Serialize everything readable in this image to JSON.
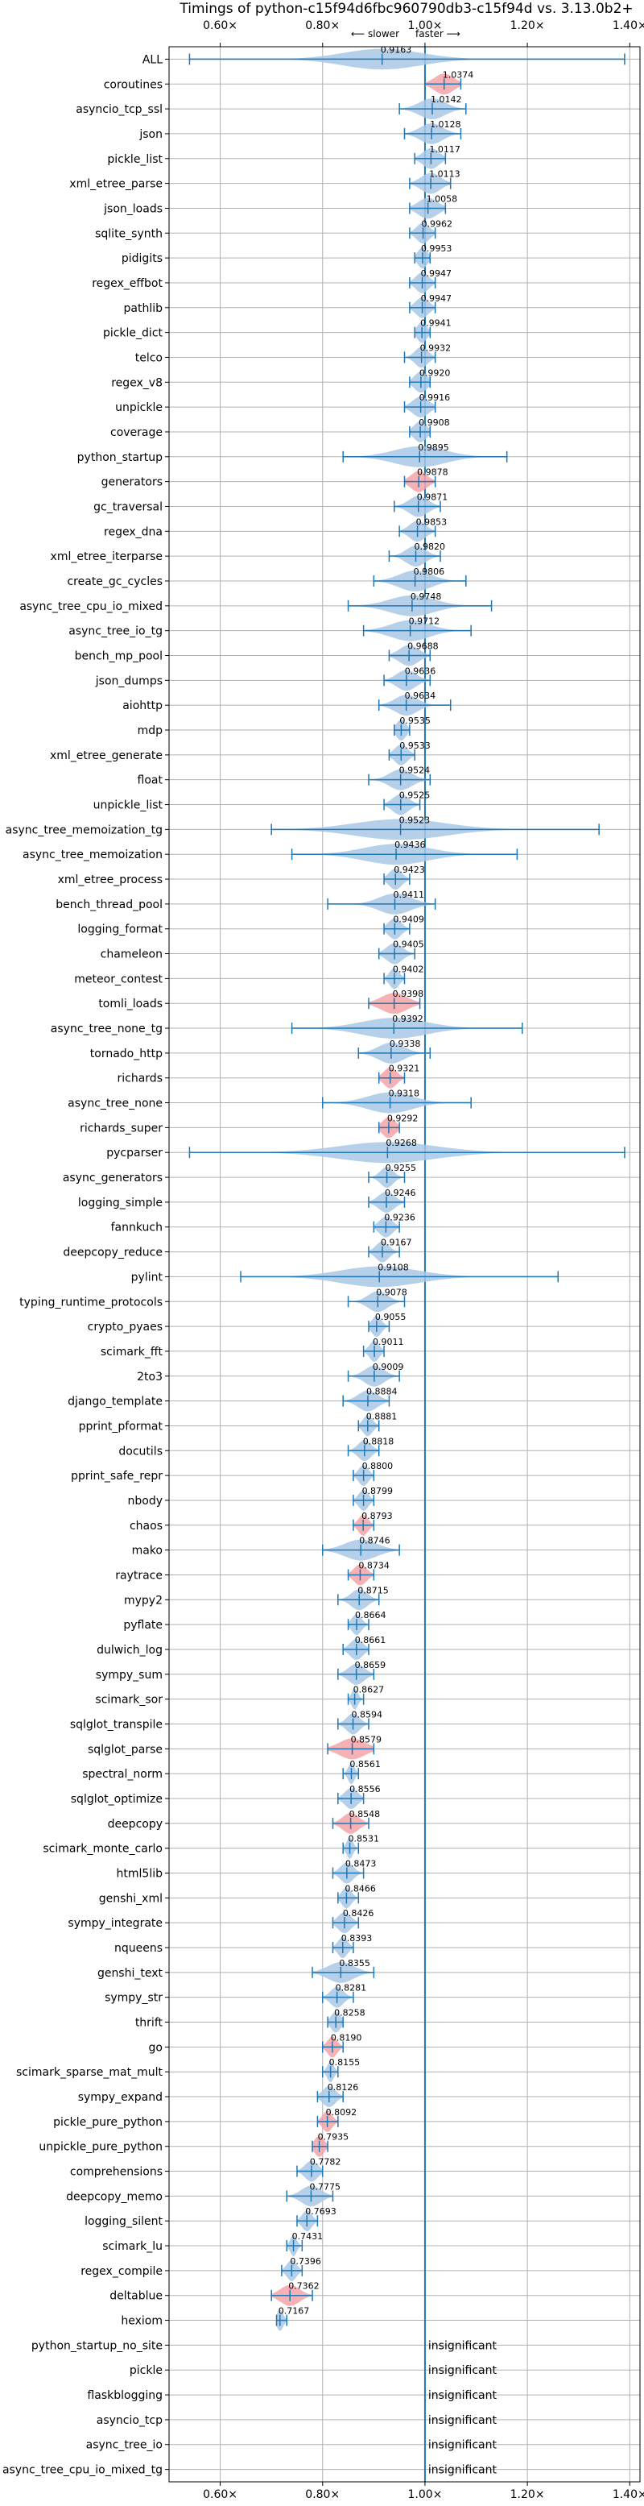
{
  "chart_data": {
    "type": "violin",
    "title": "Timings of python-c15f94d6fbc960790db3-c15f94d vs. 3.13.0b2+",
    "direction_note_left": "⟵ slower",
    "direction_note_right": "faster ⟶",
    "xlim": [
      0.5,
      1.42
    ],
    "reference_line": 1.0,
    "x_ticks": [
      0.6,
      0.8,
      1.0,
      1.2,
      1.4
    ],
    "x_tick_labels": [
      "0.60×",
      "0.80×",
      "1.00×",
      "1.20×",
      "1.40×"
    ],
    "insignificant_label": "insignificant",
    "colors": {
      "violin": "#1f77b4",
      "violin_fill": "#a9c8e6",
      "highlight_fill": "#f4a3a8",
      "grid": "#b0b0b0",
      "ref_line": "#1f77b4"
    },
    "benchmarks": [
      {
        "name": "ALL",
        "value": 0.9163,
        "label": "0.9163",
        "lo": 0.54,
        "hi": 1.39,
        "spread": 0.12,
        "hl": false
      },
      {
        "name": "coroutines",
        "value": 1.0374,
        "label": "1.0374",
        "lo": 1.0,
        "hi": 1.07,
        "spread": 0.03,
        "hl": true
      },
      {
        "name": "asyncio_tcp_ssl",
        "value": 1.0142,
        "label": "1.0142",
        "lo": 0.95,
        "hi": 1.08,
        "spread": 0.04,
        "hl": false
      },
      {
        "name": "json",
        "value": 1.0128,
        "label": "1.0128",
        "lo": 0.96,
        "hi": 1.07,
        "spread": 0.035,
        "hl": false
      },
      {
        "name": "pickle_list",
        "value": 1.0117,
        "label": "1.0117",
        "lo": 0.98,
        "hi": 1.04,
        "spread": 0.025,
        "hl": false
      },
      {
        "name": "xml_etree_parse",
        "value": 1.0113,
        "label": "1.0113",
        "lo": 0.97,
        "hi": 1.05,
        "spread": 0.03,
        "hl": false
      },
      {
        "name": "json_loads",
        "value": 1.0058,
        "label": "1.0058",
        "lo": 0.97,
        "hi": 1.04,
        "spread": 0.03,
        "hl": false
      },
      {
        "name": "sqlite_synth",
        "value": 0.9962,
        "label": "0.9962",
        "lo": 0.97,
        "hi": 1.02,
        "spread": 0.02,
        "hl": false
      },
      {
        "name": "pidigits",
        "value": 0.9953,
        "label": "0.9953",
        "lo": 0.98,
        "hi": 1.01,
        "spread": 0.015,
        "hl": false
      },
      {
        "name": "regex_effbot",
        "value": 0.9947,
        "label": "0.9947",
        "lo": 0.97,
        "hi": 1.02,
        "spread": 0.02,
        "hl": false
      },
      {
        "name": "pathlib",
        "value": 0.9947,
        "label": "0.9947",
        "lo": 0.97,
        "hi": 1.02,
        "spread": 0.02,
        "hl": false
      },
      {
        "name": "pickle_dict",
        "value": 0.9941,
        "label": "0.9941",
        "lo": 0.98,
        "hi": 1.01,
        "spread": 0.015,
        "hl": false
      },
      {
        "name": "telco",
        "value": 0.9932,
        "label": "0.9932",
        "lo": 0.96,
        "hi": 1.02,
        "spread": 0.02,
        "hl": false
      },
      {
        "name": "regex_v8",
        "value": 0.992,
        "label": "0.9920",
        "lo": 0.97,
        "hi": 1.01,
        "spread": 0.02,
        "hl": false
      },
      {
        "name": "unpickle",
        "value": 0.9916,
        "label": "0.9916",
        "lo": 0.96,
        "hi": 1.02,
        "spread": 0.025,
        "hl": false
      },
      {
        "name": "coverage",
        "value": 0.9908,
        "label": "0.9908",
        "lo": 0.97,
        "hi": 1.01,
        "spread": 0.02,
        "hl": false
      },
      {
        "name": "python_startup",
        "value": 0.9895,
        "label": "0.9895",
        "lo": 0.84,
        "hi": 1.16,
        "spread": 0.08,
        "hl": false
      },
      {
        "name": "generators",
        "value": 0.9878,
        "label": "0.9878",
        "lo": 0.96,
        "hi": 1.02,
        "spread": 0.025,
        "hl": true
      },
      {
        "name": "gc_traversal",
        "value": 0.9871,
        "label": "0.9871",
        "lo": 0.94,
        "hi": 1.03,
        "spread": 0.03,
        "hl": false
      },
      {
        "name": "regex_dna",
        "value": 0.9853,
        "label": "0.9853",
        "lo": 0.95,
        "hi": 1.02,
        "spread": 0.025,
        "hl": false
      },
      {
        "name": "xml_etree_iterparse",
        "value": 0.982,
        "label": "0.9820",
        "lo": 0.93,
        "hi": 1.03,
        "spread": 0.03,
        "hl": false
      },
      {
        "name": "create_gc_cycles",
        "value": 0.9806,
        "label": "0.9806",
        "lo": 0.9,
        "hi": 1.08,
        "spread": 0.05,
        "hl": false
      },
      {
        "name": "async_tree_cpu_io_mixed",
        "value": 0.9748,
        "label": "0.9748",
        "lo": 0.85,
        "hi": 1.13,
        "spread": 0.07,
        "hl": false
      },
      {
        "name": "async_tree_io_tg",
        "value": 0.9712,
        "label": "0.9712",
        "lo": 0.88,
        "hi": 1.09,
        "spread": 0.06,
        "hl": false
      },
      {
        "name": "bench_mp_pool",
        "value": 0.9688,
        "label": "0.9688",
        "lo": 0.93,
        "hi": 1.01,
        "spread": 0.03,
        "hl": false
      },
      {
        "name": "json_dumps",
        "value": 0.9636,
        "label": "0.9636",
        "lo": 0.92,
        "hi": 1.01,
        "spread": 0.03,
        "hl": false
      },
      {
        "name": "aiohttp",
        "value": 0.9634,
        "label": "0.9634",
        "lo": 0.91,
        "hi": 1.05,
        "spread": 0.035,
        "hl": false
      },
      {
        "name": "mdp",
        "value": 0.9535,
        "label": "0.9535",
        "lo": 0.94,
        "hi": 0.97,
        "spread": 0.015,
        "hl": false
      },
      {
        "name": "xml_etree_generate",
        "value": 0.9533,
        "label": "0.9533",
        "lo": 0.93,
        "hi": 0.98,
        "spread": 0.02,
        "hl": false
      },
      {
        "name": "float",
        "value": 0.9524,
        "label": "0.9524",
        "lo": 0.89,
        "hi": 1.01,
        "spread": 0.035,
        "hl": false
      },
      {
        "name": "unpickle_list",
        "value": 0.9525,
        "label": "0.9525",
        "lo": 0.92,
        "hi": 0.99,
        "spread": 0.025,
        "hl": false
      },
      {
        "name": "async_tree_memoization_tg",
        "value": 0.9523,
        "label": "0.9523",
        "lo": 0.7,
        "hi": 1.34,
        "spread": 0.14,
        "hl": false
      },
      {
        "name": "async_tree_memoization",
        "value": 0.9436,
        "label": "0.9436",
        "lo": 0.74,
        "hi": 1.18,
        "spread": 0.1,
        "hl": false
      },
      {
        "name": "xml_etree_process",
        "value": 0.9423,
        "label": "0.9423",
        "lo": 0.92,
        "hi": 0.97,
        "spread": 0.02,
        "hl": false
      },
      {
        "name": "bench_thread_pool",
        "value": 0.9411,
        "label": "0.9411",
        "lo": 0.81,
        "hi": 1.02,
        "spread": 0.05,
        "hl": false
      },
      {
        "name": "logging_format",
        "value": 0.9409,
        "label": "0.9409",
        "lo": 0.92,
        "hi": 0.97,
        "spread": 0.02,
        "hl": false
      },
      {
        "name": "chameleon",
        "value": 0.9405,
        "label": "0.9405",
        "lo": 0.91,
        "hi": 0.98,
        "spread": 0.025,
        "hl": false
      },
      {
        "name": "meteor_contest",
        "value": 0.9402,
        "label": "0.9402",
        "lo": 0.92,
        "hi": 0.96,
        "spread": 0.015,
        "hl": false
      },
      {
        "name": "tomli_loads",
        "value": 0.9398,
        "label": "0.9398",
        "lo": 0.89,
        "hi": 0.99,
        "spread": 0.04,
        "hl": true
      },
      {
        "name": "async_tree_none_tg",
        "value": 0.9392,
        "label": "0.9392",
        "lo": 0.74,
        "hi": 1.19,
        "spread": 0.1,
        "hl": false
      },
      {
        "name": "tornado_http",
        "value": 0.9338,
        "label": "0.9338",
        "lo": 0.87,
        "hi": 1.01,
        "spread": 0.04,
        "hl": false
      },
      {
        "name": "richards",
        "value": 0.9321,
        "label": "0.9321",
        "lo": 0.91,
        "hi": 0.96,
        "spread": 0.02,
        "hl": true
      },
      {
        "name": "async_tree_none",
        "value": 0.9318,
        "label": "0.9318",
        "lo": 0.8,
        "hi": 1.09,
        "spread": 0.07,
        "hl": false
      },
      {
        "name": "richards_super",
        "value": 0.9292,
        "label": "0.9292",
        "lo": 0.91,
        "hi": 0.95,
        "spread": 0.02,
        "hl": true
      },
      {
        "name": "pycparser",
        "value": 0.9268,
        "label": "0.9268",
        "lo": 0.54,
        "hi": 1.39,
        "spread": 0.15,
        "hl": false
      },
      {
        "name": "async_generators",
        "value": 0.9255,
        "label": "0.9255",
        "lo": 0.89,
        "hi": 0.96,
        "spread": 0.02,
        "hl": false
      },
      {
        "name": "logging_simple",
        "value": 0.9246,
        "label": "0.9246",
        "lo": 0.89,
        "hi": 0.96,
        "spread": 0.025,
        "hl": false
      },
      {
        "name": "fannkuch",
        "value": 0.9236,
        "label": "0.9236",
        "lo": 0.9,
        "hi": 0.95,
        "spread": 0.02,
        "hl": false
      },
      {
        "name": "deepcopy_reduce",
        "value": 0.9167,
        "label": "0.9167",
        "lo": 0.89,
        "hi": 0.95,
        "spread": 0.02,
        "hl": false
      },
      {
        "name": "pylint",
        "value": 0.9108,
        "label": "0.9108",
        "lo": 0.64,
        "hi": 1.26,
        "spread": 0.12,
        "hl": false
      },
      {
        "name": "typing_runtime_protocols",
        "value": 0.9078,
        "label": "0.9078",
        "lo": 0.85,
        "hi": 0.96,
        "spread": 0.03,
        "hl": false
      },
      {
        "name": "crypto_pyaes",
        "value": 0.9055,
        "label": "0.9055",
        "lo": 0.89,
        "hi": 0.93,
        "spread": 0.015,
        "hl": false
      },
      {
        "name": "scimark_fft",
        "value": 0.9011,
        "label": "0.9011",
        "lo": 0.88,
        "hi": 0.92,
        "spread": 0.015,
        "hl": false
      },
      {
        "name": "2to3",
        "value": 0.9009,
        "label": "0.9009",
        "lo": 0.85,
        "hi": 0.95,
        "spread": 0.03,
        "hl": false
      },
      {
        "name": "django_template",
        "value": 0.8884,
        "label": "0.8884",
        "lo": 0.84,
        "hi": 0.93,
        "spread": 0.03,
        "hl": false
      },
      {
        "name": "pprint_pformat",
        "value": 0.8881,
        "label": "0.8881",
        "lo": 0.87,
        "hi": 0.91,
        "spread": 0.015,
        "hl": false
      },
      {
        "name": "docutils",
        "value": 0.8818,
        "label": "0.8818",
        "lo": 0.85,
        "hi": 0.91,
        "spread": 0.02,
        "hl": false
      },
      {
        "name": "pprint_safe_repr",
        "value": 0.88,
        "label": "0.8800",
        "lo": 0.86,
        "hi": 0.9,
        "spread": 0.015,
        "hl": false
      },
      {
        "name": "nbody",
        "value": 0.8799,
        "label": "0.8799",
        "lo": 0.86,
        "hi": 0.9,
        "spread": 0.015,
        "hl": false
      },
      {
        "name": "chaos",
        "value": 0.8793,
        "label": "0.8793",
        "lo": 0.86,
        "hi": 0.9,
        "spread": 0.015,
        "hl": true
      },
      {
        "name": "mako",
        "value": 0.8746,
        "label": "0.8746",
        "lo": 0.8,
        "hi": 0.95,
        "spread": 0.05,
        "hl": false
      },
      {
        "name": "raytrace",
        "value": 0.8734,
        "label": "0.8734",
        "lo": 0.85,
        "hi": 0.9,
        "spread": 0.02,
        "hl": true
      },
      {
        "name": "mypy2",
        "value": 0.8715,
        "label": "0.8715",
        "lo": 0.83,
        "hi": 0.91,
        "spread": 0.025,
        "hl": false
      },
      {
        "name": "pyflate",
        "value": 0.8664,
        "label": "0.8664",
        "lo": 0.85,
        "hi": 0.89,
        "spread": 0.015,
        "hl": false
      },
      {
        "name": "dulwich_log",
        "value": 0.8661,
        "label": "0.8661",
        "lo": 0.84,
        "hi": 0.89,
        "spread": 0.02,
        "hl": false
      },
      {
        "name": "sympy_sum",
        "value": 0.8659,
        "label": "0.8659",
        "lo": 0.83,
        "hi": 0.9,
        "spread": 0.025,
        "hl": false
      },
      {
        "name": "scimark_sor",
        "value": 0.8627,
        "label": "0.8627",
        "lo": 0.85,
        "hi": 0.88,
        "spread": 0.01,
        "hl": false
      },
      {
        "name": "sqlglot_transpile",
        "value": 0.8594,
        "label": "0.8594",
        "lo": 0.83,
        "hi": 0.89,
        "spread": 0.02,
        "hl": false
      },
      {
        "name": "sqlglot_parse",
        "value": 0.8579,
        "label": "0.8579",
        "lo": 0.81,
        "hi": 0.9,
        "spread": 0.04,
        "hl": true
      },
      {
        "name": "spectral_norm",
        "value": 0.8561,
        "label": "0.8561",
        "lo": 0.84,
        "hi": 0.87,
        "spread": 0.01,
        "hl": false
      },
      {
        "name": "sqlglot_optimize",
        "value": 0.8556,
        "label": "0.8556",
        "lo": 0.83,
        "hi": 0.88,
        "spread": 0.02,
        "hl": false
      },
      {
        "name": "deepcopy",
        "value": 0.8548,
        "label": "0.8548",
        "lo": 0.82,
        "hi": 0.89,
        "spread": 0.025,
        "hl": true
      },
      {
        "name": "scimark_monte_carlo",
        "value": 0.8531,
        "label": "0.8531",
        "lo": 0.84,
        "hi": 0.87,
        "spread": 0.01,
        "hl": false
      },
      {
        "name": "html5lib",
        "value": 0.8473,
        "label": "0.8473",
        "lo": 0.82,
        "hi": 0.88,
        "spread": 0.02,
        "hl": false
      },
      {
        "name": "genshi_xml",
        "value": 0.8466,
        "label": "0.8466",
        "lo": 0.83,
        "hi": 0.87,
        "spread": 0.015,
        "hl": false
      },
      {
        "name": "sympy_integrate",
        "value": 0.8426,
        "label": "0.8426",
        "lo": 0.82,
        "hi": 0.87,
        "spread": 0.02,
        "hl": false
      },
      {
        "name": "nqueens",
        "value": 0.8393,
        "label": "0.8393",
        "lo": 0.82,
        "hi": 0.86,
        "spread": 0.015,
        "hl": false
      },
      {
        "name": "genshi_text",
        "value": 0.8355,
        "label": "0.8355",
        "lo": 0.78,
        "hi": 0.9,
        "spread": 0.04,
        "hl": false
      },
      {
        "name": "sympy_str",
        "value": 0.8281,
        "label": "0.8281",
        "lo": 0.8,
        "hi": 0.86,
        "spread": 0.02,
        "hl": false
      },
      {
        "name": "thrift",
        "value": 0.8258,
        "label": "0.8258",
        "lo": 0.81,
        "hi": 0.84,
        "spread": 0.015,
        "hl": false
      },
      {
        "name": "go",
        "value": 0.819,
        "label": "0.8190",
        "lo": 0.8,
        "hi": 0.84,
        "spread": 0.015,
        "hl": true
      },
      {
        "name": "scimark_sparse_mat_mult",
        "value": 0.8155,
        "label": "0.8155",
        "lo": 0.8,
        "hi": 0.83,
        "spread": 0.01,
        "hl": false
      },
      {
        "name": "sympy_expand",
        "value": 0.8126,
        "label": "0.8126",
        "lo": 0.79,
        "hi": 0.84,
        "spread": 0.02,
        "hl": false
      },
      {
        "name": "pickle_pure_python",
        "value": 0.8092,
        "label": "0.8092",
        "lo": 0.79,
        "hi": 0.83,
        "spread": 0.015,
        "hl": true
      },
      {
        "name": "unpickle_pure_python",
        "value": 0.7935,
        "label": "0.7935",
        "lo": 0.78,
        "hi": 0.81,
        "spread": 0.015,
        "hl": true
      },
      {
        "name": "comprehensions",
        "value": 0.7782,
        "label": "0.7782",
        "lo": 0.75,
        "hi": 0.8,
        "spread": 0.02,
        "hl": false
      },
      {
        "name": "deepcopy_memo",
        "value": 0.7775,
        "label": "0.7775",
        "lo": 0.73,
        "hi": 0.82,
        "spread": 0.03,
        "hl": false
      },
      {
        "name": "logging_silent",
        "value": 0.7693,
        "label": "0.7693",
        "lo": 0.75,
        "hi": 0.79,
        "spread": 0.015,
        "hl": false
      },
      {
        "name": "scimark_lu",
        "value": 0.7431,
        "label": "0.7431",
        "lo": 0.73,
        "hi": 0.76,
        "spread": 0.01,
        "hl": false
      },
      {
        "name": "regex_compile",
        "value": 0.7396,
        "label": "0.7396",
        "lo": 0.72,
        "hi": 0.76,
        "spread": 0.015,
        "hl": false
      },
      {
        "name": "deltablue",
        "value": 0.7362,
        "label": "0.7362",
        "lo": 0.7,
        "hi": 0.78,
        "spread": 0.03,
        "hl": true
      },
      {
        "name": "hexiom",
        "value": 0.7167,
        "label": "0.7167",
        "lo": 0.71,
        "hi": 0.73,
        "spread": 0.01,
        "hl": false
      },
      {
        "name": "python_startup_no_site",
        "insignificant": true
      },
      {
        "name": "pickle",
        "insignificant": true
      },
      {
        "name": "flaskblogging",
        "insignificant": true
      },
      {
        "name": "asyncio_tcp",
        "insignificant": true
      },
      {
        "name": "async_tree_io",
        "insignificant": true
      },
      {
        "name": "async_tree_cpu_io_mixed_tg",
        "insignificant": true
      }
    ]
  }
}
